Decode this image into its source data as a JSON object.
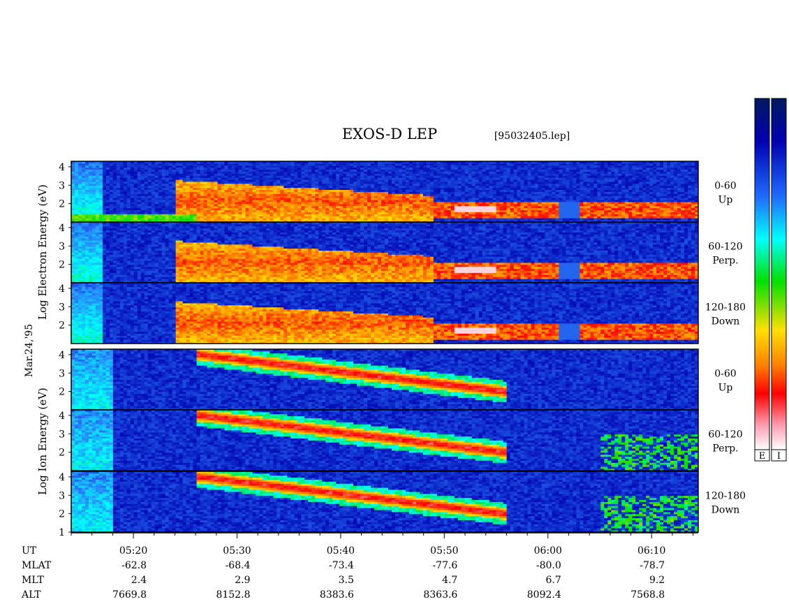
{
  "chart_data": {
    "type": "heatmap",
    "title": "EXOS-D LEP",
    "file": "[95032405.lep]",
    "date_label": "Mar.24,'95",
    "time_range": [
      "05:14:00",
      "06:14:30"
    ],
    "x_tick_labels": [
      "05:20",
      "05:30",
      "05:40",
      "05:50",
      "06:00",
      "06:10"
    ],
    "y_tick_labels": [
      "4",
      "3",
      "2"
    ],
    "y_tick_labels_bottom_panel": [
      "4",
      "3",
      "2",
      "1"
    ],
    "y_range": [
      1,
      4.3
    ],
    "groups": [
      {
        "id": "electron",
        "ylabel": "Log Electron Energy (eV)",
        "ylabel_parts": [
          "Log",
          "Electron",
          "Energy",
          "(eV)"
        ],
        "panels": [
          {
            "name": "0-60",
            "sub": "Up"
          },
          {
            "name": "60-120",
            "sub": "Perp."
          },
          {
            "name": "120-180",
            "sub": "Down"
          }
        ]
      },
      {
        "id": "ion",
        "ylabel": "Log Ion Energy (eV)",
        "ylabel_parts": [
          "Log",
          "Ion",
          "Energy",
          "(eV)"
        ],
        "panels": [
          {
            "name": "0-60",
            "sub": "Up"
          },
          {
            "name": "60-120",
            "sub": "Perp."
          },
          {
            "name": "120-180",
            "sub": "Down"
          }
        ]
      }
    ],
    "ephemeris": {
      "row_labels": [
        "UT",
        "MLAT",
        "MLT",
        "ALT"
      ],
      "columns": [
        {
          "UT": "05:20",
          "MLAT": "-62.8",
          "MLT": "2.4",
          "ALT": "7669.8"
        },
        {
          "UT": "05:30",
          "MLAT": "-68.4",
          "MLT": "2.9",
          "ALT": "8152.8"
        },
        {
          "UT": "05:40",
          "MLAT": "-73.4",
          "MLT": "3.5",
          "ALT": "8383.6"
        },
        {
          "UT": "05:50",
          "MLAT": "-77.6",
          "MLT": "4.7",
          "ALT": "8363.6"
        },
        {
          "UT": "06:00",
          "MLAT": "-80.0",
          "MLT": "6.7",
          "ALT": "8092.4"
        },
        {
          "UT": "06:10",
          "MLAT": "-78.7",
          "MLT": "9.2",
          "ALT": "7568.8"
        }
      ]
    },
    "colorbars": [
      {
        "label": "E"
      },
      {
        "label": "I"
      }
    ],
    "colormap": [
      "#ffffff",
      "#ff9db0",
      "#ff0000",
      "#ff8000",
      "#ffe000",
      "#00e000",
      "#00ffff",
      "#2a7fff",
      "#0000b0",
      "#001a5e"
    ]
  }
}
